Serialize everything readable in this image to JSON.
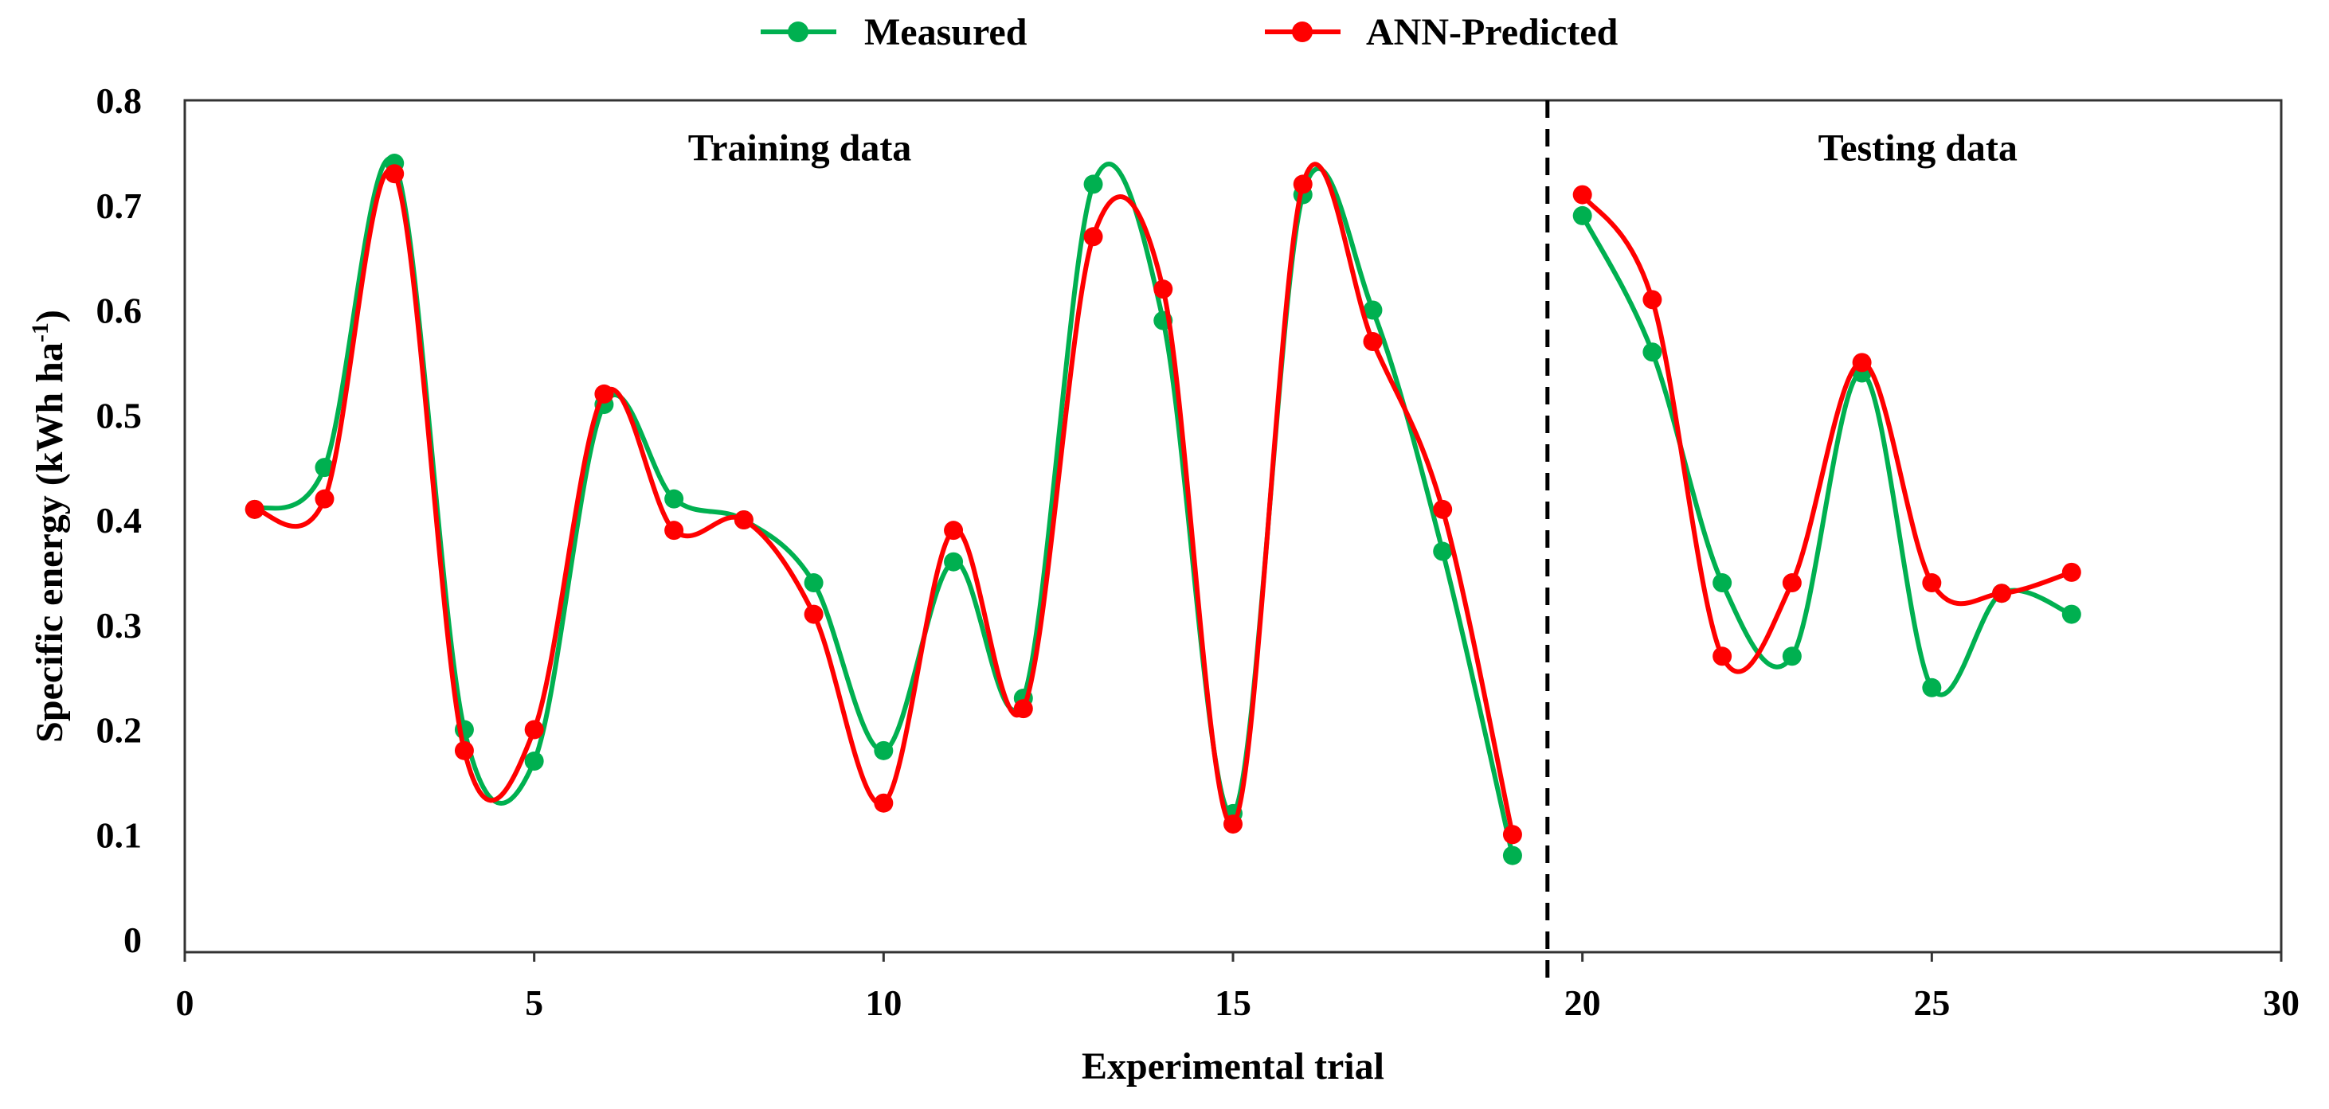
{
  "chart_data": {
    "type": "line",
    "title": "",
    "xlabel": "Experimental trial",
    "ylabel": "Specific energy (kWh ha",
    "ylabel_sup": "-1",
    "ylabel_end": ")",
    "xlim": [
      0,
      30
    ],
    "ylim": [
      0,
      0.8
    ],
    "xticks": [
      0,
      5,
      10,
      15,
      20,
      25,
      30
    ],
    "xtick_labels": [
      "0",
      "5",
      "10",
      "15",
      "20",
      "25",
      "30"
    ],
    "yticks": [
      0,
      0.1,
      0.2,
      0.3,
      0.4,
      0.5,
      0.6,
      0.7,
      0.8
    ],
    "ytick_labels": [
      "0",
      "0.1",
      "0.2",
      "0.3",
      "0.4",
      "0.5",
      "0.6",
      "0.7",
      "0.8"
    ],
    "grid": false,
    "legend_position": "top-center",
    "divider_x": 19.5,
    "annotations": [
      {
        "text": "Training data",
        "x": 8.8,
        "y": 0.755
      },
      {
        "text": "Testing data",
        "x": 24.8,
        "y": 0.755
      }
    ],
    "x": [
      1,
      2,
      3,
      4,
      5,
      6,
      7,
      8,
      9,
      10,
      11,
      12,
      13,
      14,
      15,
      16,
      17,
      18,
      19,
      20,
      21,
      22,
      23,
      24,
      25,
      26,
      27
    ],
    "series": [
      {
        "name": "Measured",
        "color": "#00b050",
        "values": [
          0.41,
          0.45,
          0.74,
          0.2,
          0.17,
          0.51,
          0.42,
          0.4,
          0.34,
          0.18,
          0.36,
          0.23,
          0.72,
          0.59,
          0.12,
          0.71,
          0.6,
          0.37,
          0.08,
          0.69,
          0.56,
          0.34,
          0.27,
          0.54,
          0.24,
          0.33,
          0.31
        ]
      },
      {
        "name": "ANN-Predicted",
        "color": "#ff0000",
        "values": [
          0.41,
          0.42,
          0.73,
          0.18,
          0.2,
          0.52,
          0.39,
          0.4,
          0.31,
          0.13,
          0.39,
          0.22,
          0.67,
          0.62,
          0.11,
          0.72,
          0.57,
          0.41,
          0.1,
          0.71,
          0.61,
          0.27,
          0.34,
          0.55,
          0.34,
          0.33,
          0.35
        ]
      }
    ]
  }
}
